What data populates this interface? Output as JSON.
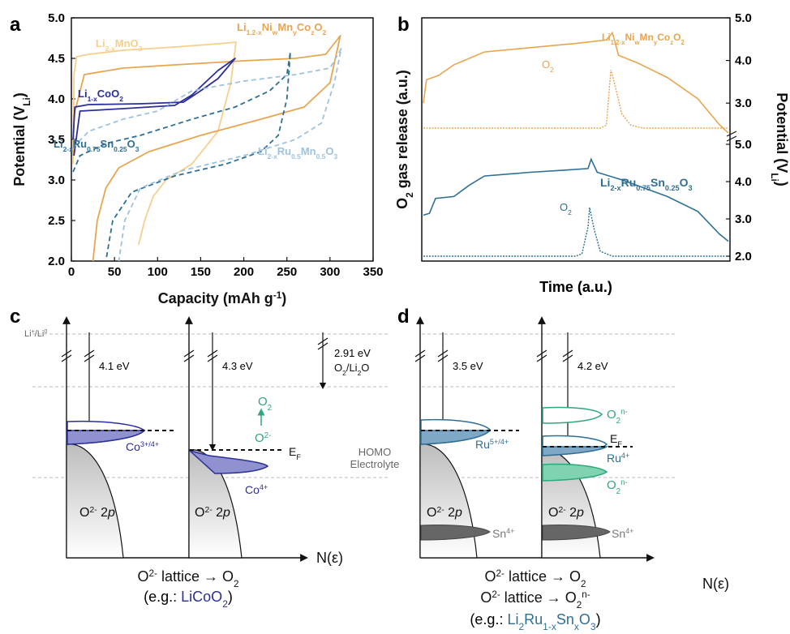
{
  "colors": {
    "orange": "#E8A550",
    "light_orange": "#F6CF8E",
    "navy": "#2B2F9A",
    "teal": "#2F6F94",
    "light_blue": "#9FC2DD",
    "green": "#2FA77A",
    "gray": "#777777"
  },
  "panels": {
    "a": {
      "letter": "a"
    },
    "b": {
      "letter": "b"
    },
    "c": {
      "letter": "c"
    },
    "d": {
      "letter": "d"
    }
  },
  "chart_data": [
    {
      "panel": "a",
      "type": "line",
      "xlabel": "Capacity (mAh g",
      "xlabel_sup": "-1",
      "xlabel_end": ")",
      "ylabel": "Potential (V",
      "ylabel_sub": "Li",
      "ylabel_end": ")",
      "xlim": [
        0,
        350
      ],
      "ylim": [
        2.0,
        5.0
      ],
      "xticks": [
        "0",
        "50",
        "100",
        "150",
        "200",
        "250",
        "300",
        "350"
      ],
      "yticks": [
        "2.0",
        "2.5",
        "3.0",
        "3.5",
        "4.0",
        "4.5",
        "5.0"
      ],
      "series": [
        {
          "name_parts": [
            "Li",
            "2-x",
            "MnO",
            "3",
            ""
          ],
          "style": "solid",
          "color_key": "light_orange",
          "charge": [
            [
              2,
              3.2
            ],
            [
              3,
              4.3
            ],
            [
              6,
              4.52
            ],
            [
              20,
              4.55
            ],
            [
              60,
              4.6
            ],
            [
              120,
              4.64
            ],
            [
              170,
              4.68
            ],
            [
              191,
              4.7
            ]
          ],
          "discharge": [
            [
              191,
              4.7
            ],
            [
              185,
              4.2
            ],
            [
              170,
              3.6
            ],
            [
              140,
              3.2
            ],
            [
              110,
              3.0
            ],
            [
              95,
              2.8
            ],
            [
              85,
              2.5
            ],
            [
              78,
              2.2
            ]
          ]
        },
        {
          "name_parts": [
            "Li",
            "1.2-x",
            "Ni",
            "w",
            "Mn",
            "y",
            "Co",
            "z",
            "O",
            "2",
            ""
          ],
          "style": "solid",
          "color_key": "orange",
          "charge": [
            [
              2,
              3.3
            ],
            [
              3,
              3.8
            ],
            [
              15,
              4.3
            ],
            [
              60,
              4.38
            ],
            [
              120,
              4.42
            ],
            [
              200,
              4.47
            ],
            [
              260,
              4.5
            ],
            [
              295,
              4.55
            ],
            [
              312,
              4.78
            ]
          ],
          "discharge": [
            [
              312,
              4.78
            ],
            [
              300,
              4.2
            ],
            [
              270,
              3.9
            ],
            [
              220,
              3.75
            ],
            [
              150,
              3.55
            ],
            [
              90,
              3.35
            ],
            [
              55,
              3.15
            ],
            [
              40,
              2.9
            ],
            [
              30,
              2.5
            ],
            [
              25,
              2.0
            ]
          ]
        },
        {
          "name_parts": [
            "Li",
            "1-x",
            "CoO",
            "2",
            ""
          ],
          "style": "solid",
          "color_key": "navy",
          "charge": [
            [
              2,
              3.5
            ],
            [
              4,
              3.9
            ],
            [
              20,
              3.93
            ],
            [
              80,
              3.94
            ],
            [
              130,
              3.96
            ],
            [
              150,
              4.1
            ],
            [
              170,
              4.25
            ],
            [
              190,
              4.5
            ]
          ],
          "discharge": [
            [
              190,
              4.5
            ],
            [
              170,
              4.35
            ],
            [
              140,
              4.05
            ],
            [
              120,
              3.92
            ],
            [
              60,
              3.88
            ],
            [
              10,
              3.85
            ],
            [
              3,
              3.3
            ]
          ]
        },
        {
          "name_parts": [
            "Li",
            "2-x",
            "Ru",
            "0.75",
            "Sn",
            "0.25",
            "O",
            "3",
            ""
          ],
          "style": "dashed",
          "color_key": "teal",
          "charge": [
            [
              2,
              3.1
            ],
            [
              10,
              3.3
            ],
            [
              40,
              3.45
            ],
            [
              80,
              3.55
            ],
            [
              110,
              3.65
            ],
            [
              140,
              3.75
            ],
            [
              190,
              3.9
            ],
            [
              230,
              4.1
            ],
            [
              250,
              4.3
            ],
            [
              254,
              4.58
            ]
          ],
          "discharge": [
            [
              254,
              4.58
            ],
            [
              250,
              4.0
            ],
            [
              240,
              3.55
            ],
            [
              220,
              3.35
            ],
            [
              180,
              3.2
            ],
            [
              120,
              3.05
            ],
            [
              70,
              2.85
            ],
            [
              48,
              2.5
            ],
            [
              40,
              2.0
            ]
          ]
        },
        {
          "name_parts": [
            "Li",
            "2-x",
            "Ru",
            "0.5",
            "Mn",
            "0.5",
            "O",
            "3",
            ""
          ],
          "style": "dashed",
          "color_key": "light_blue",
          "charge": [
            [
              2,
              3.4
            ],
            [
              20,
              3.6
            ],
            [
              60,
              3.75
            ],
            [
              100,
              3.85
            ],
            [
              140,
              4.1
            ],
            [
              200,
              4.22
            ],
            [
              260,
              4.3
            ],
            [
              300,
              4.38
            ],
            [
              313,
              4.62
            ]
          ],
          "discharge": [
            [
              313,
              4.62
            ],
            [
              305,
              4.2
            ],
            [
              290,
              3.7
            ],
            [
              260,
              3.5
            ],
            [
              200,
              3.3
            ],
            [
              130,
              3.12
            ],
            [
              80,
              2.9
            ],
            [
              62,
              2.5
            ],
            [
              55,
              2.0
            ]
          ]
        }
      ]
    },
    {
      "panel": "b",
      "type": "line",
      "xlabel": "Time (a.u.)",
      "ylabel": "gas release (a.u.)",
      "ylabel_prefix": "O",
      "ylabel_prefix_sub": "2",
      "y2label": "Potential (V",
      "y2label_sub": "Li",
      "y2label_end": ")",
      "ylim": [
        2.0,
        5.0
      ],
      "yticks_top": [
        "3.0",
        "4.0",
        "5.0"
      ],
      "yticks_bottom": [
        "2.0",
        "3.0",
        "4.0",
        "5.0"
      ],
      "series": [
        {
          "name_parts": [
            "Li",
            "1.2-x",
            "Ni",
            "w",
            "Mn",
            "y",
            "Co",
            "z",
            "O",
            "2",
            ""
          ],
          "color_key": "orange",
          "subplot": "top",
          "potential": [
            [
              0,
              3.0
            ],
            [
              0.01,
              3.55
            ],
            [
              0.05,
              3.65
            ],
            [
              0.1,
              3.9
            ],
            [
              0.2,
              4.2
            ],
            [
              0.35,
              4.3
            ],
            [
              0.5,
              4.4
            ],
            [
              0.6,
              4.48
            ],
            [
              0.62,
              4.65
            ],
            [
              0.64,
              4.12
            ],
            [
              0.7,
              3.95
            ],
            [
              0.8,
              3.6
            ],
            [
              0.9,
              3.1
            ],
            [
              0.97,
              2.5
            ],
            [
              1.0,
              2.3
            ]
          ],
          "o2": [
            [
              0,
              0
            ],
            [
              0.58,
              0
            ],
            [
              0.6,
              0.05
            ],
            [
              0.61,
              0.7
            ],
            [
              0.615,
              1.0
            ],
            [
              0.63,
              0.7
            ],
            [
              0.65,
              0.25
            ],
            [
              0.68,
              0.05
            ],
            [
              0.72,
              0
            ],
            [
              1.0,
              0
            ]
          ],
          "gas_label": [
            "O",
            "2"
          ]
        },
        {
          "name_parts": [
            "Li",
            "2-x",
            "Ru",
            "0.75",
            "Sn",
            "0.25",
            "O",
            "3",
            ""
          ],
          "color_key": "teal",
          "subplot": "bottom",
          "potential": [
            [
              0,
              3.1
            ],
            [
              0.02,
              3.15
            ],
            [
              0.04,
              3.55
            ],
            [
              0.1,
              3.6
            ],
            [
              0.15,
              3.9
            ],
            [
              0.2,
              4.15
            ],
            [
              0.35,
              4.25
            ],
            [
              0.45,
              4.3
            ],
            [
              0.54,
              4.35
            ],
            [
              0.55,
              4.6
            ],
            [
              0.57,
              4.25
            ],
            [
              0.65,
              4.05
            ],
            [
              0.8,
              3.6
            ],
            [
              0.9,
              3.2
            ],
            [
              0.97,
              2.6
            ],
            [
              1.0,
              2.4
            ]
          ],
          "o2": [
            [
              0,
              0
            ],
            [
              0.5,
              0
            ],
            [
              0.52,
              0.05
            ],
            [
              0.54,
              0.6
            ],
            [
              0.545,
              1.0
            ],
            [
              0.56,
              0.55
            ],
            [
              0.58,
              0.1
            ],
            [
              0.62,
              0
            ],
            [
              1.0,
              0
            ]
          ],
          "gas_label": [
            "O",
            "2"
          ]
        }
      ]
    }
  ],
  "panel_c": {
    "vacuum_level": [
      "Li",
      "+",
      "/Li",
      "0"
    ],
    "gap_left": "4.1 eV",
    "gap_right": "4.3 eV",
    "o2_li2o_gap": "2.91 eV",
    "o2_li2o": [
      "O",
      "2",
      "/Li",
      "2",
      "O"
    ],
    "co_left": [
      "Co",
      "3+/4+"
    ],
    "co_right": [
      "Co",
      "4+"
    ],
    "o_band_left": [
      "O",
      "2-",
      " 2",
      "p"
    ],
    "o_band_right": [
      "O",
      "2-",
      " 2",
      "p"
    ],
    "o2_product": [
      "O",
      "2"
    ],
    "o2_minus": [
      "O",
      "2-"
    ],
    "fermi": [
      "E",
      "F"
    ],
    "homo": "HOMO",
    "electrolyte": "Electrolyte",
    "n_eps": "N(ε)",
    "caption_line1": [
      "O",
      "2-",
      " lattice → O",
      "2"
    ],
    "caption_line2_pre": "(e.g.: ",
    "caption_line2_comp": [
      "LiCoO",
      "2"
    ],
    "caption_line2_post": ")"
  },
  "panel_d": {
    "gap_left": "3.5 eV",
    "gap_right": "4.2 eV",
    "ru_left": [
      "Ru",
      "5+/4+"
    ],
    "ru_right": [
      "Ru",
      "4+"
    ],
    "o2n_top": [
      "O",
      "2",
      "n-"
    ],
    "o2n_bottom": [
      "O",
      "2",
      "n-"
    ],
    "fermi": [
      "E",
      "F"
    ],
    "o_band_left": [
      "O",
      "2-",
      " 2",
      "p"
    ],
    "o_band_right": [
      "O",
      "2-",
      " 2",
      "p"
    ],
    "sn_left": [
      "Sn",
      "4+"
    ],
    "sn_right": [
      "Sn",
      "4+"
    ],
    "n_eps": "N(ε)",
    "caption_line1": [
      "O",
      "2-",
      " lattice → O",
      "2"
    ],
    "caption_line2": [
      "O",
      "2-",
      " lattice → O",
      "2",
      "n-"
    ],
    "caption_line3_pre": "(e.g.: ",
    "caption_line3_comp": [
      "Li",
      "2",
      "Ru",
      "1-x",
      "Sn",
      "x",
      "O",
      "3"
    ],
    "caption_line3_post": ")"
  }
}
